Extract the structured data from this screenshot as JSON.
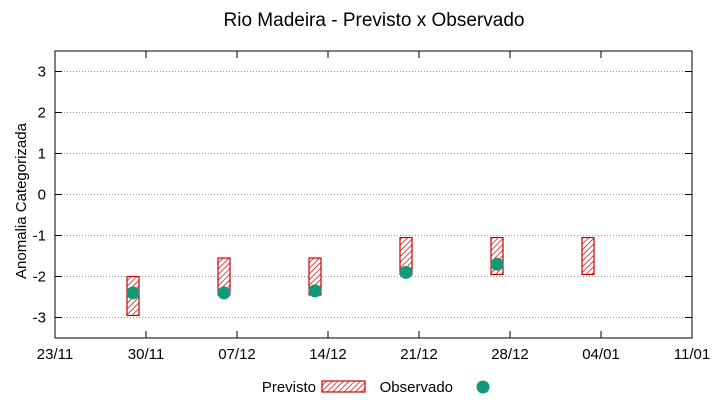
{
  "chart_data": {
    "type": "range-bar",
    "title": "Rio Madeira - Previsto x Observado",
    "ylabel": "Anomalia Categorizada",
    "xlabel": "",
    "xlim": [
      "2025-11-23",
      "2026-01-11"
    ],
    "ylim": [
      -3.5,
      3.5
    ],
    "x_tick_labels": [
      "23/11",
      "30/11",
      "07/12",
      "14/12",
      "21/12",
      "28/12",
      "04/01",
      "11/01"
    ],
    "y_tick_values": [
      -3,
      -2,
      -1,
      0,
      1,
      2,
      3
    ],
    "y_tick_labels": [
      "-3",
      "-2",
      "-1",
      "0",
      "1",
      "2",
      "3"
    ],
    "grid": "horizontal-dotted",
    "legend_position": "bottom",
    "series": [
      {
        "name": "Previsto",
        "kind": "range",
        "color": "#cc0000",
        "fill": "hatched",
        "points": [
          {
            "x": "2025-11-29",
            "low": -2.95,
            "high": -2.0
          },
          {
            "x": "2025-12-06",
            "low": -2.45,
            "high": -1.55
          },
          {
            "x": "2025-12-13",
            "low": -2.45,
            "high": -1.55
          },
          {
            "x": "2025-12-20",
            "low": -1.95,
            "high": -1.05
          },
          {
            "x": "2025-12-27",
            "low": -1.95,
            "high": -1.05
          },
          {
            "x": "2026-01-03",
            "low": -1.95,
            "high": -1.05
          }
        ]
      },
      {
        "name": "Observado",
        "kind": "point",
        "color": "#119977",
        "points": [
          {
            "x": "2025-11-29",
            "y": -2.4
          },
          {
            "x": "2025-12-06",
            "y": -2.4
          },
          {
            "x": "2025-12-13",
            "y": -2.35
          },
          {
            "x": "2025-12-20",
            "y": -1.9
          },
          {
            "x": "2025-12-27",
            "y": -1.7
          }
        ]
      }
    ]
  }
}
